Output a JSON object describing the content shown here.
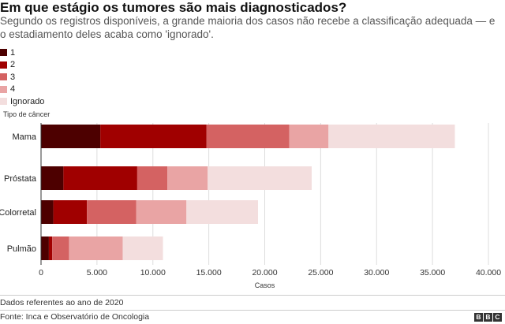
{
  "header": {
    "title": "Em que estágio os tumores são mais diagnosticados?",
    "subtitle": "Segundo os registros disponíveis, a grande maioria dos casos não recebe a classificação adequada — e o estadiamento deles acaba como 'ignorado'."
  },
  "chart_data": {
    "type": "bar",
    "orientation": "horizontal",
    "stacked": true,
    "ylabel": "Tipo de câncer",
    "xlabel": "Casos",
    "categories": [
      "Mama",
      "Próstata",
      "Colorretal",
      "Pulmão"
    ],
    "series": [
      {
        "name": "1",
        "color": "#4d0000",
        "values": [
          5300,
          2000,
          1100,
          700
        ]
      },
      {
        "name": "2",
        "color": "#a00000",
        "values": [
          9500,
          6600,
          3000,
          300
        ]
      },
      {
        "name": "3",
        "color": "#d46262",
        "values": [
          7400,
          2700,
          4400,
          1500
        ]
      },
      {
        "name": "4",
        "color": "#e9a4a4",
        "values": [
          3500,
          3600,
          4500,
          4800
        ]
      },
      {
        "name": "Ignorado",
        "color": "#f3dede",
        "values": [
          11300,
          9300,
          6400,
          3600
        ]
      }
    ],
    "xlim": [
      0,
      40000
    ],
    "xticks": [
      0,
      5000,
      10000,
      15000,
      20000,
      25000,
      30000,
      35000,
      40000
    ],
    "xtick_labels": [
      "0",
      "5.000",
      "10.000",
      "15.000",
      "20.000",
      "25.000",
      "30.000",
      "35.000",
      "40.000"
    ],
    "grid": "vertical",
    "legend_position": "top-left"
  },
  "footer": {
    "note": "Dados referentes ao ano de 2020",
    "source": "Fonte: Inca e Observatório de Oncologia",
    "logo_letters": [
      "B",
      "B",
      "C"
    ]
  }
}
